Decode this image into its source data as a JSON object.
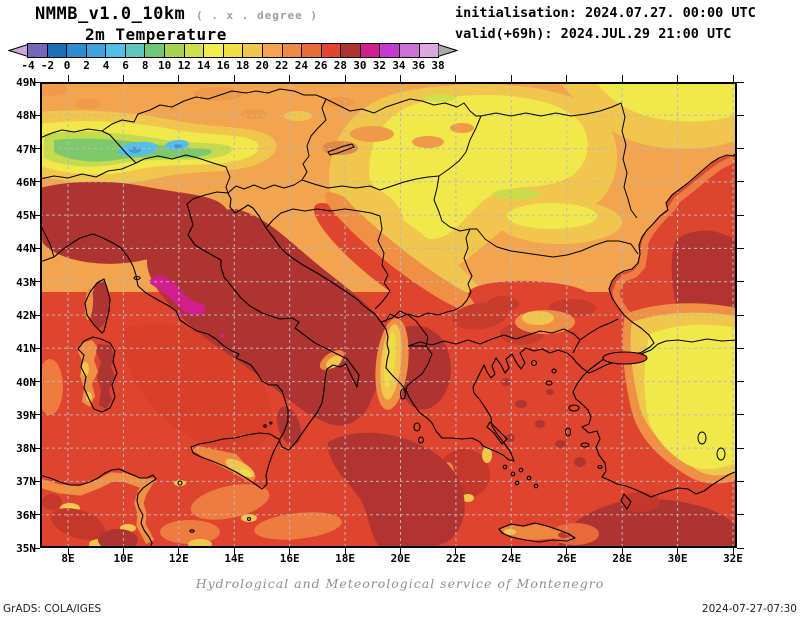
{
  "header": {
    "model_title": "NMMB_v1.0_10km",
    "resolution_note": "( . x . degree )",
    "variable_title": "2m Temperature",
    "initialisation": "initialisation: 2024.07.27. 00:00 UTC",
    "valid": "valid(+69h): 2024.JUL.29 21:00 UTC"
  },
  "colorbar": {
    "tick_labels": [
      "-4",
      "-2",
      "0",
      "2",
      "4",
      "6",
      "8",
      "10",
      "12",
      "14",
      "16",
      "18",
      "20",
      "22",
      "24",
      "26",
      "28",
      "30",
      "32",
      "34",
      "36",
      "38"
    ],
    "segment_colors": [
      "#7766B8",
      "#1D6FB5",
      "#2E8CCC",
      "#41A4DC",
      "#55BEE8",
      "#63C4C0",
      "#6EC877",
      "#A5D44E",
      "#CFE04C",
      "#F2EC4C",
      "#F0DE48",
      "#F0C64E",
      "#F2A452",
      "#EF8A44",
      "#E86B3C",
      "#E0452E",
      "#AE3431",
      "#D01E8E",
      "#C43AD0",
      "#CD70D8",
      "#DCA8E0"
    ],
    "below_min_color": "#CBA6DD",
    "above_max_color": "#A9A9A9"
  },
  "map": {
    "lat_labels": [
      "49N",
      "48N",
      "47N",
      "46N",
      "45N",
      "44N",
      "43N",
      "42N",
      "41N",
      "40N",
      "39N",
      "38N",
      "37N",
      "36N",
      "35N"
    ],
    "lon_labels": [
      "8E",
      "10E",
      "12E",
      "14E",
      "16E",
      "18E",
      "20E",
      "22E",
      "24E",
      "26E",
      "28E",
      "30E",
      "32E"
    ],
    "grid_color": "#b9b9b9",
    "sea_hot_red": "#DF452E",
    "land_orange": "#F2A44E",
    "extreme_magenta": "#D01E8E"
  },
  "footer": {
    "credit": "Hydrological and Meteorological service of Montenegro",
    "grads": "GrADS: COLA/IGES",
    "generated": "2024-07-27-07:30"
  }
}
